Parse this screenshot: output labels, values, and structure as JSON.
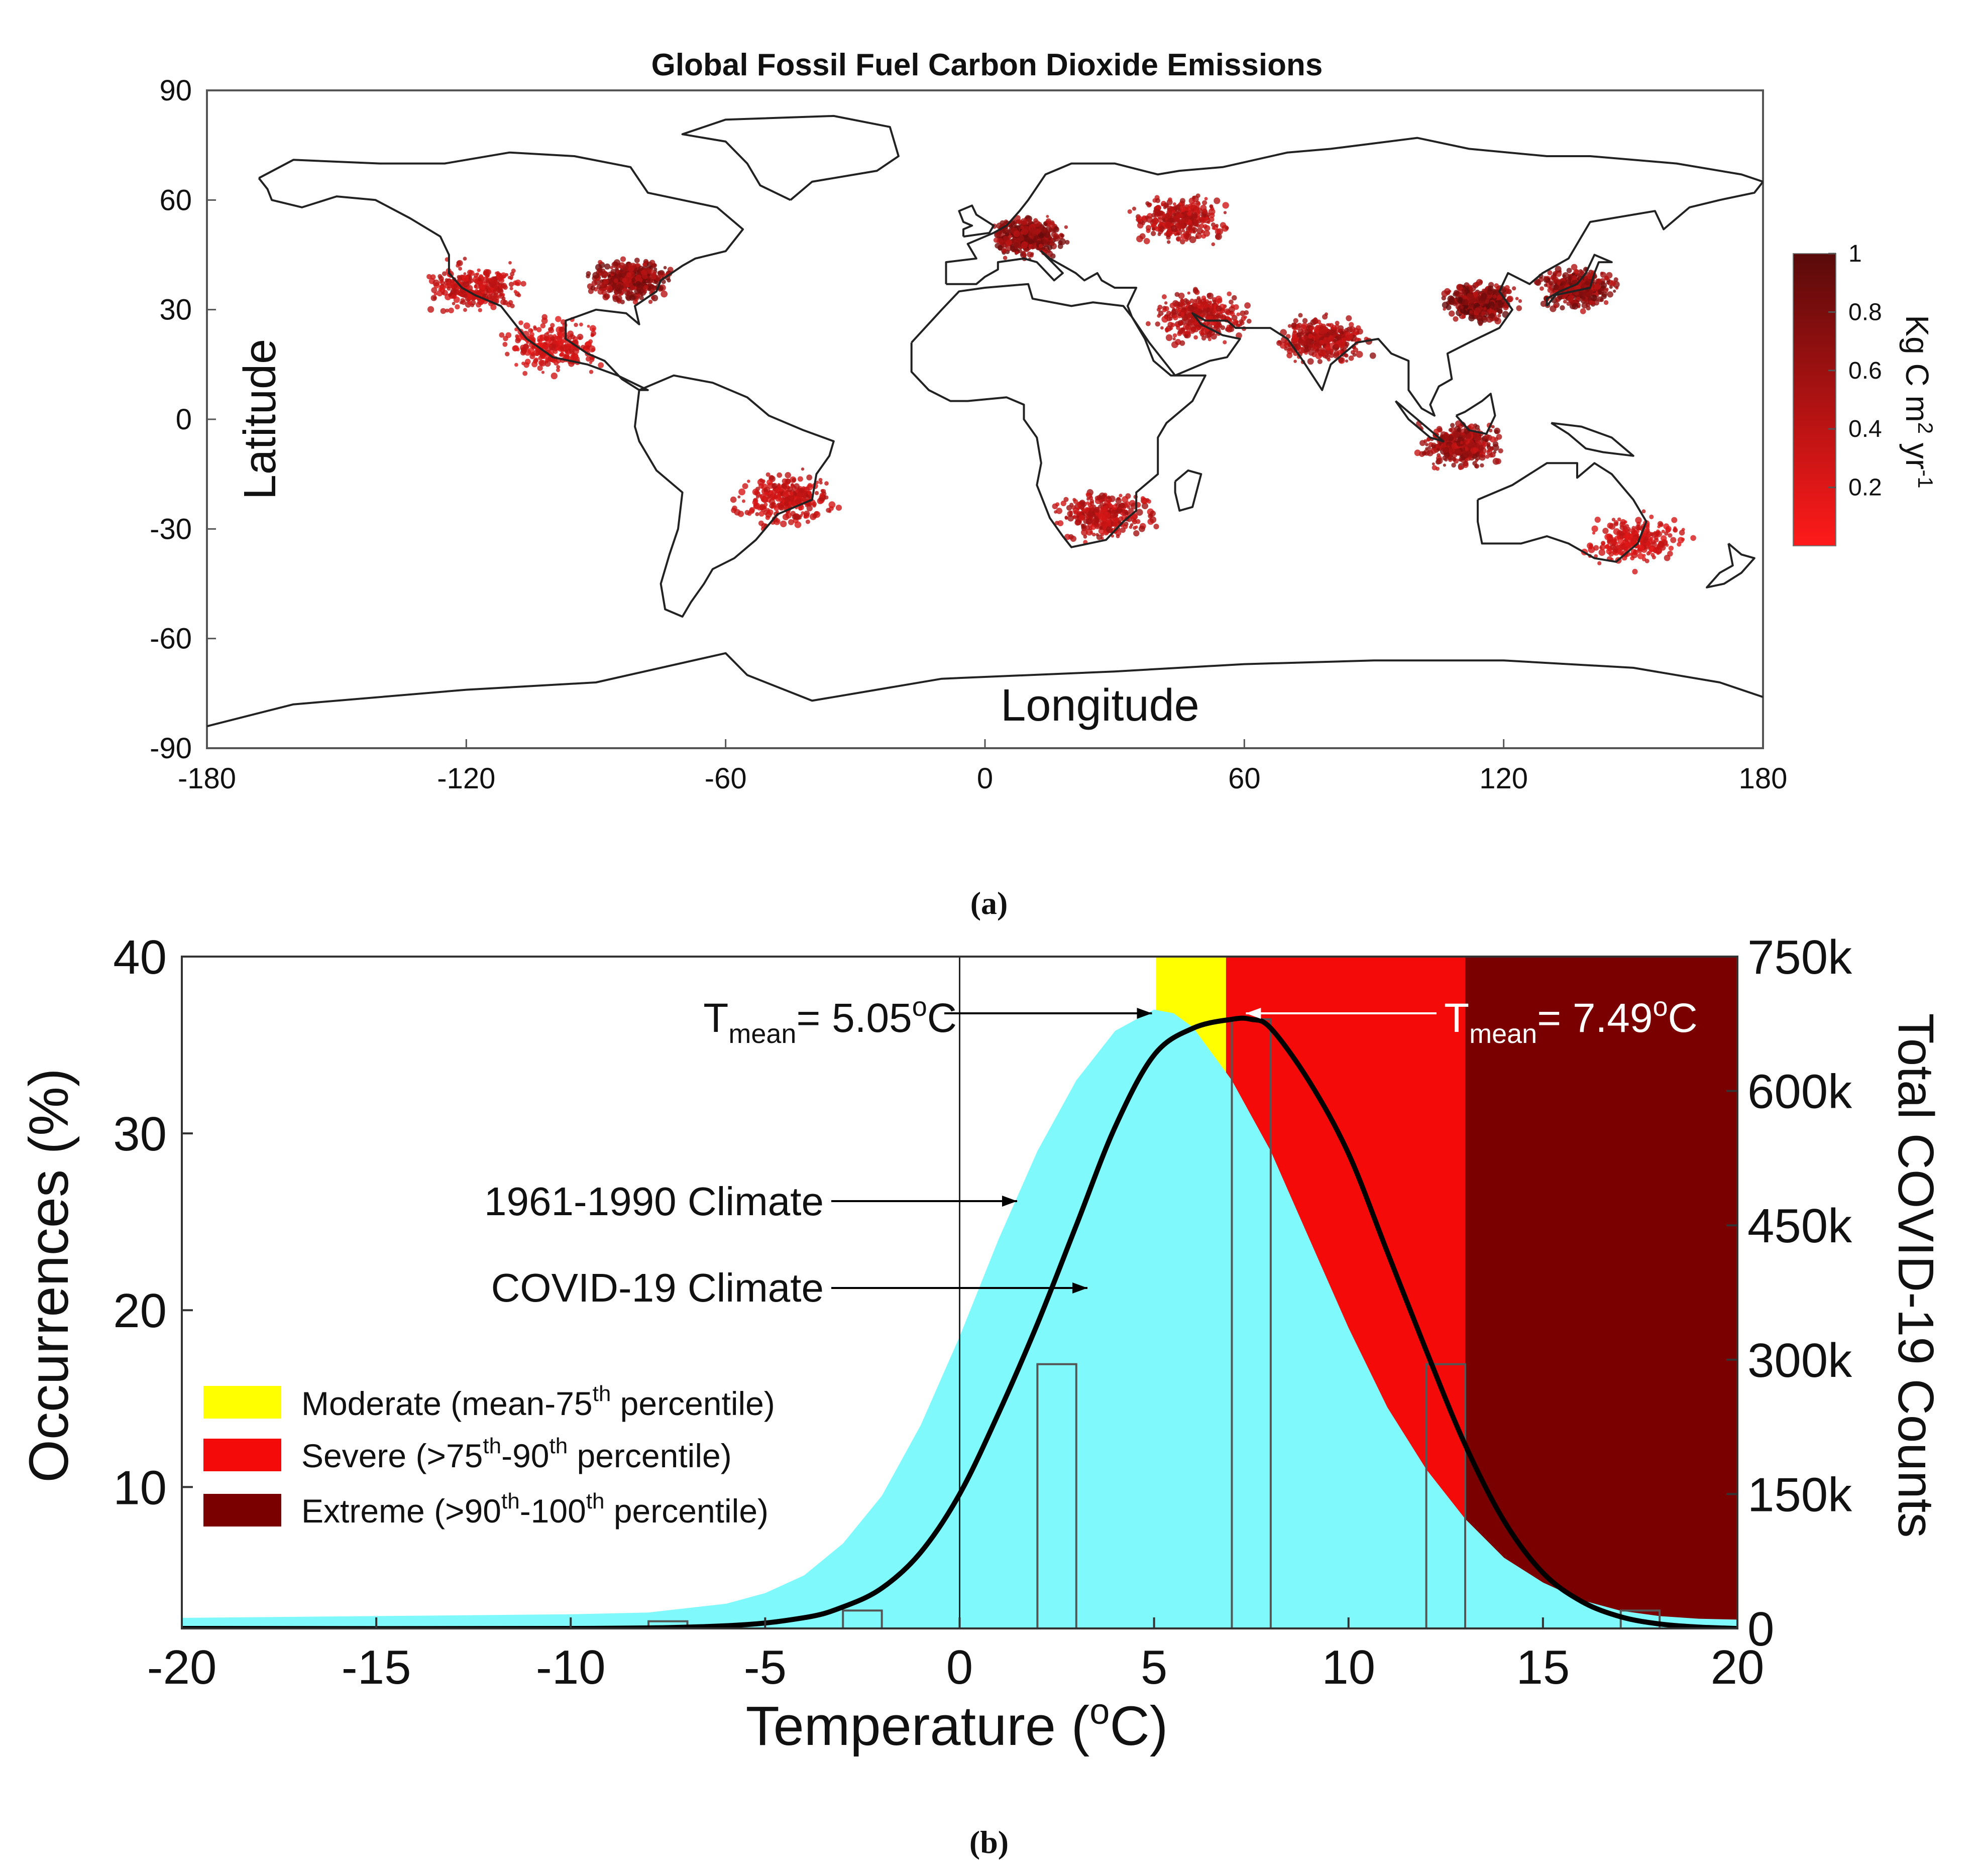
{
  "colors": {
    "emission_low": "#ff1a1a",
    "emission_high": "#5a0a0a",
    "coast": "#222222",
    "climate_fill": "#7ff9fb",
    "moderate": "#ffff00",
    "severe": "#f50a0a",
    "extreme": "#7a0000",
    "curve": "#000000"
  },
  "panel_a": {
    "caption": "(a)",
    "chart_data": {
      "type": "heatmap",
      "title": "Global Fossil Fuel Carbon Dioxide Emissions",
      "xlabel": "Longitude",
      "ylabel": "Latitude",
      "xlim": [
        -180,
        180
      ],
      "ylim": [
        -90,
        90
      ],
      "x_ticks": [
        -180,
        -120,
        -60,
        0,
        60,
        120,
        180
      ],
      "y_ticks": [
        90,
        60,
        30,
        0,
        -30,
        -60,
        -90
      ],
      "colorbar": {
        "label_main": "Kg C m",
        "label_sup1": "2",
        "label_mid": " yr",
        "label_sup2": "-1",
        "range": [
          0,
          1
        ],
        "ticks": [
          "1",
          "0.8",
          "0.6",
          "0.4",
          "0.2"
        ]
      },
      "hotspots": [
        {
          "region": "Eastern United States",
          "lon": -82,
          "lat": 38,
          "intensity": 0.9
        },
        {
          "region": "Western United States",
          "lon": -118,
          "lat": 36,
          "intensity": 0.5
        },
        {
          "region": "Mexico",
          "lon": -100,
          "lat": 20,
          "intensity": 0.4
        },
        {
          "region": "Europe",
          "lon": 10,
          "lat": 50,
          "intensity": 0.95
        },
        {
          "region": "Russia",
          "lon": 45,
          "lat": 55,
          "intensity": 0.6
        },
        {
          "region": "Middle East",
          "lon": 50,
          "lat": 28,
          "intensity": 0.6
        },
        {
          "region": "India",
          "lon": 78,
          "lat": 22,
          "intensity": 0.7
        },
        {
          "region": "Eastern China",
          "lon": 115,
          "lat": 32,
          "intensity": 1.0
        },
        {
          "region": "Japan",
          "lon": 137,
          "lat": 36,
          "intensity": 0.9
        },
        {
          "region": "Java",
          "lon": 110,
          "lat": -7,
          "intensity": 0.8
        },
        {
          "region": "Brazil",
          "lon": -46,
          "lat": -22,
          "intensity": 0.5
        },
        {
          "region": "South Africa",
          "lon": 28,
          "lat": -26,
          "intensity": 0.6
        },
        {
          "region": "Eastern Australia",
          "lon": 150,
          "lat": -33,
          "intensity": 0.4
        }
      ]
    }
  },
  "panel_b": {
    "caption": "(b)",
    "chart_data": {
      "type": "area",
      "xlabel": "Temperature (",
      "xlabel_sup": "o",
      "xlabel_end": "C)",
      "ylabel_left": "Occurrences (%)",
      "ylabel_right": "Total COVID-19 Counts",
      "xlim": [
        -20,
        20
      ],
      "ylim_left": [
        2,
        40
      ],
      "ylim_right": [
        0,
        750000
      ],
      "x_ticks": [
        -20,
        -15,
        -10,
        -5,
        0,
        5,
        10,
        15,
        20
      ],
      "y_ticks_left": [
        10,
        20,
        30,
        40
      ],
      "y_ticks_right": [
        "0",
        "150k",
        "300k",
        "450k",
        "600k",
        "750k"
      ],
      "bands": [
        {
          "name": "Moderate",
          "x0": 5.05,
          "x1": 6.85
        },
        {
          "name": "Severe",
          "x0": 6.85,
          "x1": 13.0
        },
        {
          "name": "Extreme",
          "x0": 13.0,
          "x1": 20.0
        }
      ],
      "series": [
        {
          "name": "1961-1990 Climate",
          "x": [
            -20,
            -15,
            -10,
            -8,
            -6,
            -5,
            -4,
            -3,
            -2,
            -1,
            0,
            1,
            2,
            3,
            4,
            5,
            5.5,
            6,
            7,
            8,
            9,
            10,
            11,
            12,
            13,
            14,
            15,
            16,
            17,
            18,
            19,
            20
          ],
          "values": [
            2.6,
            2.7,
            2.8,
            2.9,
            3.4,
            4.0,
            5.0,
            6.8,
            9.5,
            13.5,
            18.5,
            24.0,
            29.0,
            33.0,
            35.8,
            37.0,
            36.8,
            36.0,
            33.0,
            29.0,
            24.0,
            19.0,
            14.5,
            11.0,
            8.2,
            6.0,
            4.6,
            3.6,
            3.0,
            2.7,
            2.55,
            2.5
          ]
        },
        {
          "name": "COVID-19 Climate",
          "x": [
            -20,
            -10,
            -6,
            -4,
            -3,
            -2,
            -1,
            0,
            1,
            2,
            3,
            4,
            5,
            6,
            7,
            7.49,
            8,
            9,
            10,
            11,
            12,
            13,
            14,
            15,
            16,
            17,
            18,
            19,
            20
          ],
          "values": [
            0,
            0,
            3000,
            12000,
            24000,
            45000,
            85000,
            150000,
            240000,
            340000,
            450000,
            560000,
            640000,
            670000,
            680000,
            680000,
            670000,
            610000,
            530000,
            420000,
            310000,
            205000,
            120000,
            62000,
            30000,
            13000,
            5000,
            1500,
            0
          ]
        }
      ],
      "histogram": {
        "series": "Total COVID-19 Counts",
        "bins": [
          {
            "x0": -8,
            "x1": -7,
            "value": 8000
          },
          {
            "x0": -3,
            "x1": -2,
            "value": 20000
          },
          {
            "x0": 2,
            "x1": 3,
            "value": 295000
          },
          {
            "x0": 7,
            "x1": 8,
            "value": 680000
          },
          {
            "x0": 12,
            "x1": 13,
            "value": 295000
          },
          {
            "x0": 17,
            "x1": 18,
            "value": 20000
          }
        ]
      },
      "annotations": {
        "tmean_left_label": "T",
        "tmean_left_sub": "mean",
        "tmean_left_value": "= 5.05",
        "tmean_left_sup": "o",
        "tmean_left_unit": "C",
        "tmean_left_x": 5.05,
        "tmean_right_label": "T",
        "tmean_right_sub": "mean",
        "tmean_right_value": "= 7.49",
        "tmean_right_sup": "o",
        "tmean_right_unit": "C",
        "tmean_right_x": 7.49,
        "climate_label": "1961-1990 Climate",
        "covid_label": "COVID-19 Climate"
      },
      "legend": {
        "moderate_a": "Moderate (mean-75",
        "moderate_sup": "th",
        "moderate_b": " percentile)",
        "severe_a": "Severe (>75",
        "severe_sup1": "th",
        "severe_mid": "-90",
        "severe_sup2": "th",
        "severe_b": " percentile)",
        "extreme_a": "Extreme (>90",
        "extreme_sup1": "th",
        "extreme_mid": "-100",
        "extreme_sup2": "th",
        "extreme_b": " percentile)"
      }
    }
  }
}
